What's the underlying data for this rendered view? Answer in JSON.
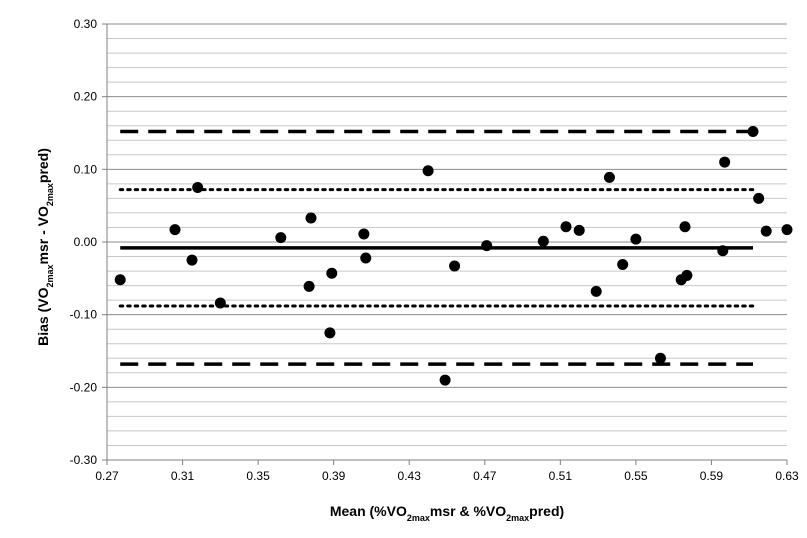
{
  "chart_data": {
    "type": "scatter",
    "title": "",
    "xlabel": {
      "parts": [
        {
          "text": "Mean (%VO",
          "sub": false
        },
        {
          "text": "2max",
          "sub": true
        },
        {
          "text": "msr & %VO",
          "sub": false
        },
        {
          "text": "2max",
          "sub": true
        },
        {
          "text": "pred)",
          "sub": false
        }
      ]
    },
    "ylabel": {
      "parts": [
        {
          "text": "Bias (VO",
          "sub": false
        },
        {
          "text": "2max",
          "sub": true
        },
        {
          "text": "msr - VO",
          "sub": false
        },
        {
          "text": "2max",
          "sub": true
        },
        {
          "text": "pred)",
          "sub": false
        }
      ]
    },
    "xlim": [
      0.27,
      0.63
    ],
    "ylim": [
      -0.3,
      0.3
    ],
    "x_ticks": [
      "0.27",
      "0.31",
      "0.35",
      "0.39",
      "0.43",
      "0.47",
      "0.51",
      "0.55",
      "0.59",
      "0.63"
    ],
    "y_ticks": [
      "0.30",
      "0.20",
      "0.10",
      "0.00",
      "-0.10",
      "-0.20",
      "-0.30"
    ],
    "grid": true,
    "legend": "none",
    "series": [
      {
        "marker": "circle",
        "color": "#000000",
        "points": [
          [
            0.277,
            -0.052
          ],
          [
            0.306,
            0.017
          ],
          [
            0.315,
            -0.025
          ],
          [
            0.318,
            0.075
          ],
          [
            0.33,
            -0.084
          ],
          [
            0.362,
            0.006
          ],
          [
            0.377,
            -0.061
          ],
          [
            0.378,
            0.033
          ],
          [
            0.388,
            -0.125
          ],
          [
            0.389,
            -0.043
          ],
          [
            0.406,
            0.011
          ],
          [
            0.407,
            -0.022
          ],
          [
            0.44,
            0.098
          ],
          [
            0.449,
            -0.19
          ],
          [
            0.454,
            -0.033
          ],
          [
            0.471,
            -0.005
          ],
          [
            0.501,
            0.001
          ],
          [
            0.513,
            0.021
          ],
          [
            0.52,
            0.016
          ],
          [
            0.529,
            -0.068
          ],
          [
            0.536,
            0.089
          ],
          [
            0.543,
            -0.031
          ],
          [
            0.55,
            0.004
          ],
          [
            0.563,
            -0.16
          ],
          [
            0.574,
            -0.052
          ],
          [
            0.576,
            0.021
          ],
          [
            0.577,
            -0.046
          ],
          [
            0.596,
            -0.012
          ],
          [
            0.597,
            0.11
          ],
          [
            0.612,
            0.152
          ],
          [
            0.615,
            0.06
          ],
          [
            0.619,
            0.015
          ],
          [
            0.63,
            0.017
          ]
        ]
      }
    ],
    "reference_lines": [
      {
        "value": 0.152,
        "style": "dashed",
        "x_range": [
          0.277,
          0.612
        ]
      },
      {
        "value": 0.072,
        "style": "dotted",
        "x_range": [
          0.277,
          0.612
        ]
      },
      {
        "value": -0.008,
        "style": "solid",
        "x_range": [
          0.277,
          0.612
        ]
      },
      {
        "value": -0.088,
        "style": "dotted",
        "x_range": [
          0.277,
          0.612
        ]
      },
      {
        "value": -0.168,
        "style": "dashed",
        "x_range": [
          0.277,
          0.612
        ]
      }
    ]
  }
}
